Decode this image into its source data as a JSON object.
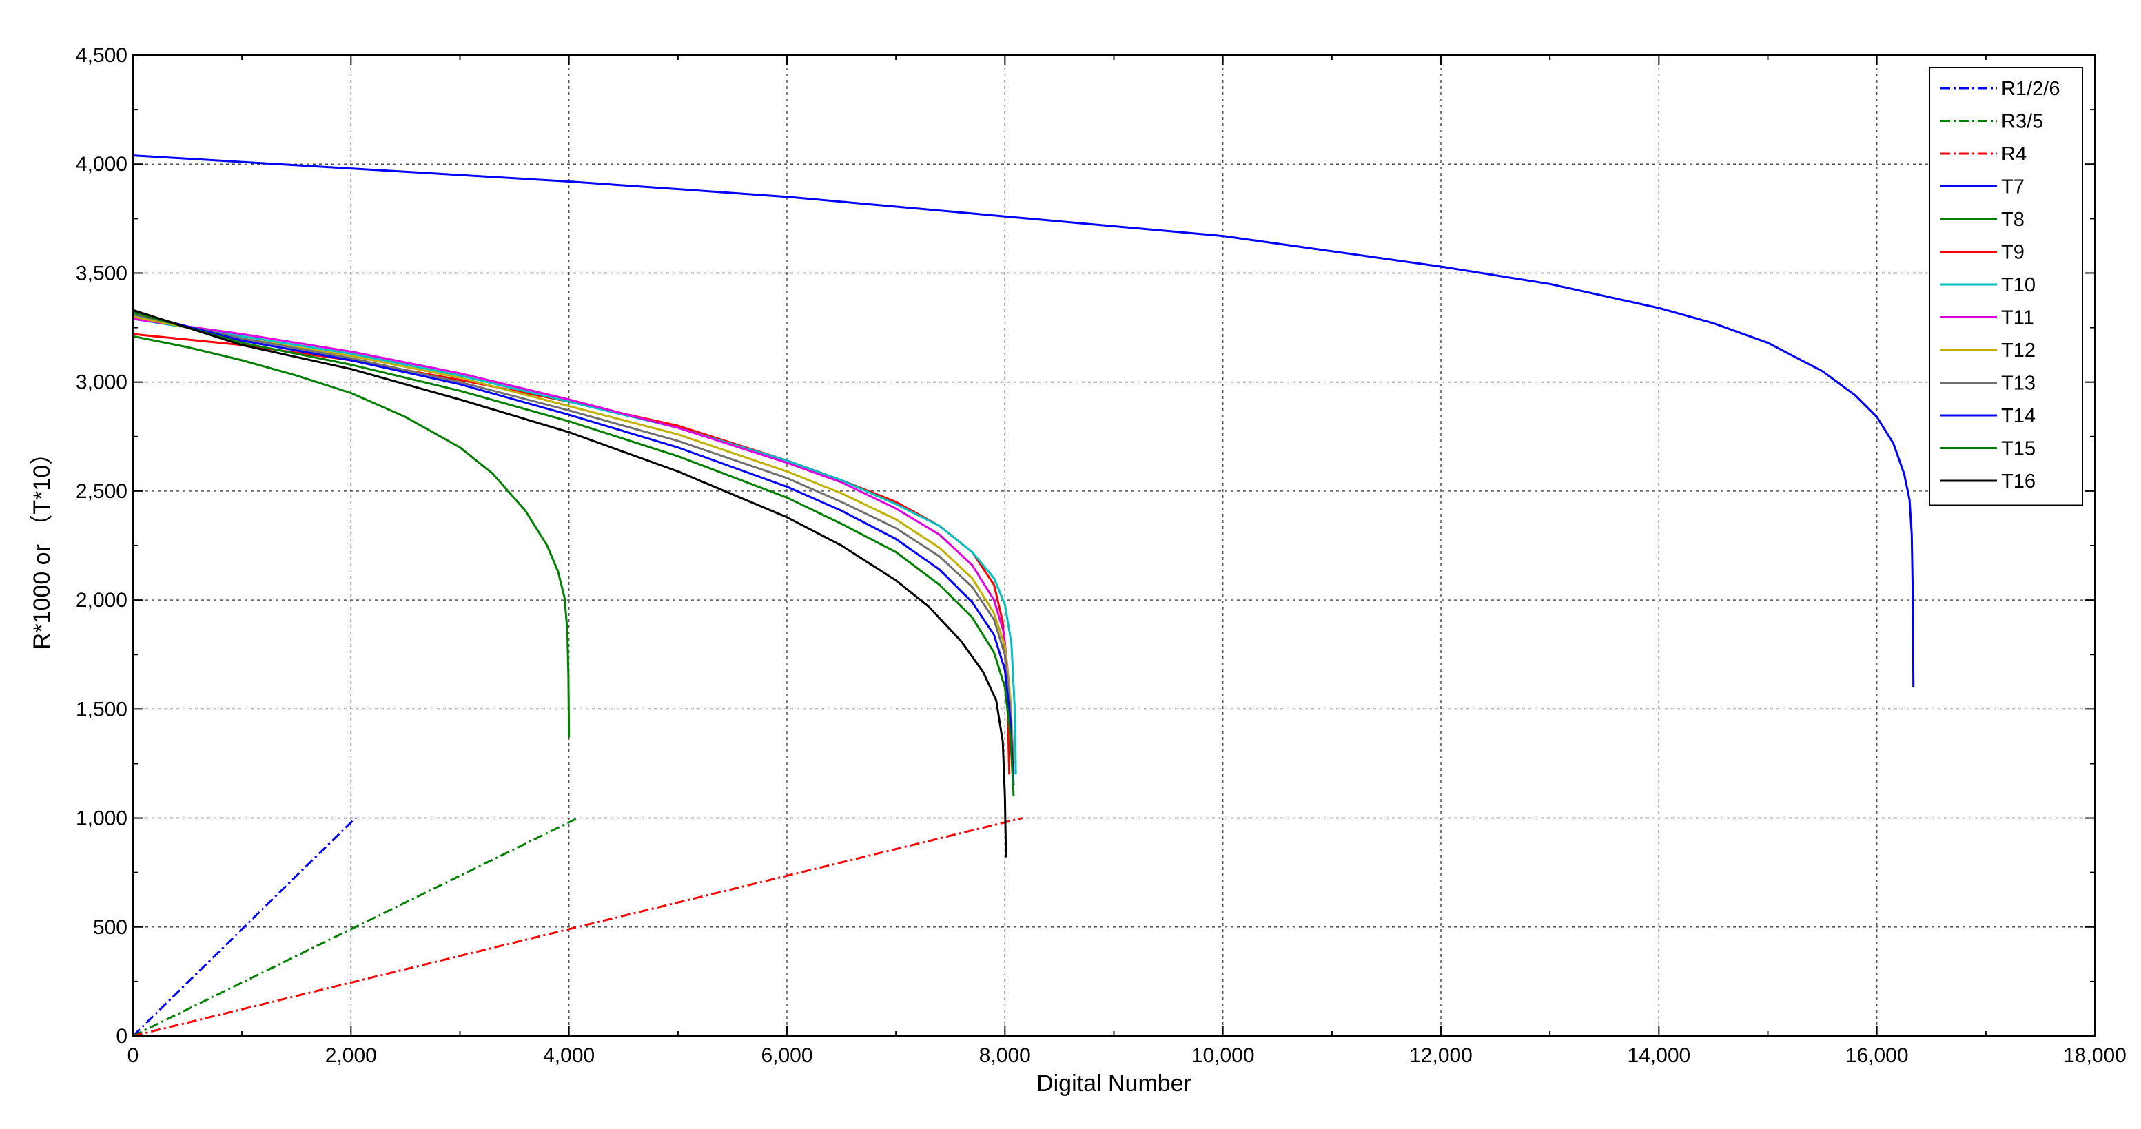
{
  "chart_data": {
    "type": "line",
    "title": "",
    "xlabel": "Digital Number",
    "ylabel": "R*1000 or （T*10）",
    "xlim": [
      0,
      18000
    ],
    "ylim": [
      0,
      4500
    ],
    "x_ticks": [
      0,
      2000,
      4000,
      6000,
      8000,
      10000,
      12000,
      14000,
      16000,
      18000
    ],
    "x_tick_labels": [
      "0",
      "2,000",
      "4,000",
      "6,000",
      "8,000",
      "10,000",
      "12,000",
      "14,000",
      "16,000",
      "18,000"
    ],
    "y_ticks": [
      0,
      500,
      1000,
      1500,
      2000,
      2500,
      3000,
      3500,
      4000,
      4500
    ],
    "y_tick_labels": [
      "0",
      "500",
      "1,000",
      "1,500",
      "2,000",
      "2,500",
      "3,000",
      "3,500",
      "4,000",
      "4,500"
    ],
    "grid": true,
    "legend_position": "top-right",
    "series": [
      {
        "name": "R1/2/6",
        "color": "#0000ff",
        "style": "dashdot",
        "x": [
          0,
          2040
        ],
        "y": [
          0,
          1000
        ]
      },
      {
        "name": "R3/5",
        "color": "#008000",
        "style": "dashdot",
        "x": [
          0,
          4080
        ],
        "y": [
          0,
          1000
        ]
      },
      {
        "name": "R4",
        "color": "#ff0000",
        "style": "dashdot",
        "x": [
          0,
          8160
        ],
        "y": [
          0,
          1000
        ]
      },
      {
        "name": "T7",
        "color": "#0000ff",
        "style": "solid",
        "x": [
          0,
          2000,
          4000,
          6000,
          8000,
          10000,
          12000,
          13000,
          14000,
          14500,
          15000,
          15500,
          15800,
          16000,
          16150,
          16250,
          16300,
          16320,
          16330,
          16335
        ],
        "y": [
          4040,
          3980,
          3920,
          3850,
          3760,
          3670,
          3530,
          3450,
          3340,
          3270,
          3180,
          3050,
          2940,
          2840,
          2720,
          2580,
          2460,
          2300,
          2000,
          1600
        ]
      },
      {
        "name": "T8",
        "color": "#008000",
        "style": "solid",
        "x": [
          0,
          500,
          1000,
          1500,
          2000,
          2500,
          3000,
          3300,
          3600,
          3800,
          3900,
          3960,
          3985,
          3995,
          4000
        ],
        "y": [
          3210,
          3160,
          3100,
          3030,
          2950,
          2840,
          2700,
          2580,
          2410,
          2250,
          2130,
          2010,
          1860,
          1650,
          1370
        ]
      },
      {
        "name": "T9",
        "color": "#ff0000",
        "style": "solid",
        "x": [
          0,
          1000,
          2000,
          3000,
          4000,
          5000,
          6000,
          6500,
          7000,
          7400,
          7700,
          7900,
          7980,
          8020,
          8040
        ],
        "y": [
          3220,
          3170,
          3100,
          3010,
          2910,
          2800,
          2640,
          2550,
          2450,
          2340,
          2220,
          2070,
          1900,
          1600,
          1200
        ]
      },
      {
        "name": "T10",
        "color": "#00c0c0",
        "style": "solid",
        "x": [
          0,
          1000,
          2000,
          3000,
          4000,
          5000,
          6000,
          6500,
          7000,
          7400,
          7700,
          7900,
          8000,
          8060,
          8090,
          8100
        ],
        "y": [
          3290,
          3210,
          3130,
          3030,
          2910,
          2790,
          2640,
          2550,
          2440,
          2340,
          2220,
          2100,
          1980,
          1800,
          1500,
          1200
        ]
      },
      {
        "name": "T11",
        "color": "#e000e0",
        "style": "solid",
        "x": [
          0,
          1000,
          2000,
          3000,
          4000,
          5000,
          6000,
          6500,
          7000,
          7400,
          7700,
          7900,
          7990,
          8040,
          8070
        ],
        "y": [
          3290,
          3220,
          3140,
          3040,
          2920,
          2790,
          2630,
          2540,
          2420,
          2300,
          2160,
          2000,
          1850,
          1600,
          1300
        ]
      },
      {
        "name": "T12",
        "color": "#c0b000",
        "style": "solid",
        "x": [
          0,
          1000,
          2000,
          3000,
          4000,
          5000,
          6000,
          6500,
          7000,
          7400,
          7700,
          7900,
          8000,
          8050,
          8080
        ],
        "y": [
          3300,
          3200,
          3120,
          3020,
          2890,
          2760,
          2590,
          2490,
          2370,
          2240,
          2100,
          1940,
          1790,
          1550,
          1250
        ]
      },
      {
        "name": "T13",
        "color": "#707070",
        "style": "solid",
        "x": [
          0,
          1000,
          2000,
          3000,
          4000,
          5000,
          6000,
          6500,
          7000,
          7400,
          7700,
          7900,
          8000,
          8050,
          8080
        ],
        "y": [
          3310,
          3200,
          3110,
          3000,
          2870,
          2730,
          2560,
          2450,
          2330,
          2200,
          2060,
          1910,
          1750,
          1500,
          1200
        ]
      },
      {
        "name": "T14",
        "color": "#0000ff",
        "style": "solid",
        "x": [
          0,
          1000,
          2000,
          3000,
          4000,
          5000,
          6000,
          6500,
          7000,
          7400,
          7700,
          7900,
          8000,
          8050,
          8080
        ],
        "y": [
          3320,
          3190,
          3100,
          2990,
          2850,
          2700,
          2520,
          2410,
          2280,
          2140,
          1990,
          1840,
          1680,
          1450,
          1150
        ]
      },
      {
        "name": "T15",
        "color": "#008000",
        "style": "solid",
        "x": [
          0,
          1000,
          2000,
          3000,
          4000,
          5000,
          6000,
          6500,
          7000,
          7400,
          7700,
          7900,
          8000,
          8050,
          8080
        ],
        "y": [
          3320,
          3180,
          3080,
          2960,
          2820,
          2660,
          2470,
          2350,
          2220,
          2070,
          1920,
          1760,
          1600,
          1380,
          1100
        ]
      },
      {
        "name": "T16",
        "color": "#000000",
        "style": "solid",
        "x": [
          0,
          1000,
          2000,
          3000,
          4000,
          5000,
          6000,
          6500,
          7000,
          7300,
          7600,
          7800,
          7920,
          7980,
          8000,
          8010
        ],
        "y": [
          3330,
          3170,
          3060,
          2920,
          2770,
          2590,
          2380,
          2250,
          2090,
          1970,
          1810,
          1670,
          1540,
          1350,
          1100,
          820
        ]
      }
    ]
  }
}
